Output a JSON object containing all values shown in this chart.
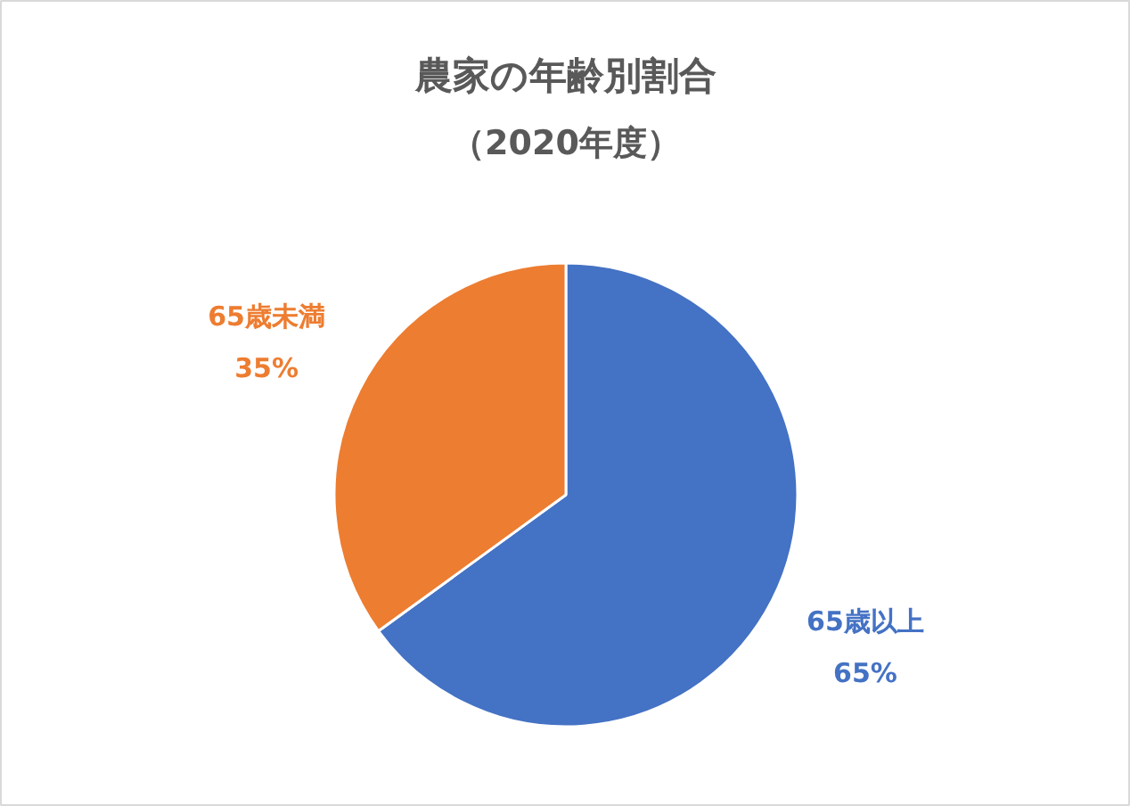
{
  "chart_data": {
    "type": "pie",
    "title": "農家の年齢別割合",
    "subtitle": "（2020年度）",
    "categories": [
      "65歳以上",
      "65歳未満"
    ],
    "values": [
      65,
      35
    ],
    "colors": [
      "#4472c4",
      "#ed7d31"
    ],
    "value_labels": [
      "65%",
      "35%"
    ]
  }
}
